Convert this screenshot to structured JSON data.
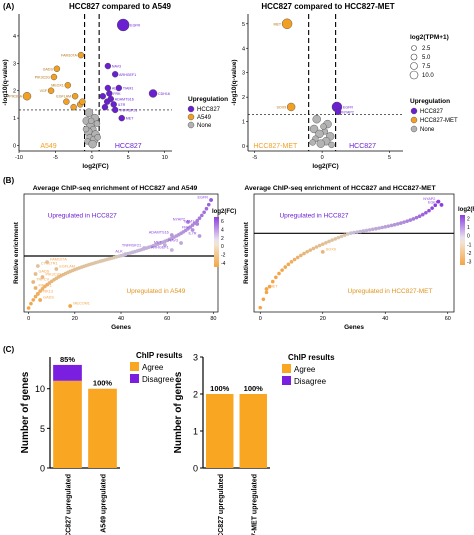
{
  "panels": {
    "a": {
      "label": "(A)",
      "left_title": "HCC827 compared to A549",
      "right_title": "HCC827 compared to HCC827-MET"
    },
    "b": {
      "label": "(B)",
      "left_title": "Average ChIP-seq enrichment of HCC827 and A549",
      "right_title": "Average ChIP-seq enrichment of HCC827 and HCC827-MET"
    },
    "c": {
      "label": "(C)"
    }
  },
  "legends": {
    "size_title": "log2(TPM+1)",
    "size_values": [
      "2.5",
      "5.0",
      "7.5",
      "10.0"
    ],
    "upreg_title": "Upregulation",
    "upreg_left": [
      "HCC827",
      "A549",
      "None"
    ],
    "upreg_right": [
      "HCC827",
      "HCC827-MET",
      "None"
    ],
    "fc_title": "log2(FC)",
    "chip_title": "ChIP results",
    "chip_items": [
      "Agree",
      "Disagree"
    ]
  },
  "colors": {
    "hcc827": "#6a1fd0",
    "a549": "#f2a024",
    "none": "#b3b3b3",
    "bar_orange": "#f9a623",
    "bar_purple": "#7a1fe0",
    "fc_high": "#8b3fe0",
    "fc_low": "#f5a445"
  },
  "chart_data": [
    {
      "type": "scatter",
      "id": "volcano-left",
      "title": "HCC827 compared to A549",
      "xlabel": "log2(FC)",
      "ylabel": "-log10(q-value)",
      "xlim": [
        -10,
        11
      ],
      "ylim": [
        -0.2,
        4.8
      ],
      "xticks": [
        -10,
        -5,
        0,
        5,
        10
      ],
      "yticks": [
        0,
        1,
        2,
        3,
        4
      ],
      "threshold_y": 1.3,
      "threshold_x": [
        -1,
        1
      ],
      "region_labels": {
        "left": "A549",
        "right": "HCC827"
      },
      "points": [
        {
          "x": 4.3,
          "y": 4.4,
          "r": 6,
          "g": "hcc827",
          "label": "EGFR"
        },
        {
          "x": 8.4,
          "y": 1.9,
          "r": 4,
          "g": "hcc827",
          "label": "CDH16"
        },
        {
          "x": 2.2,
          "y": 2.9,
          "r": 3,
          "g": "hcc827",
          "label": "NAV3"
        },
        {
          "x": 3.2,
          "y": 2.6,
          "r": 3,
          "g": "hcc827",
          "label": "ARHGEF1"
        },
        {
          "x": 3.7,
          "y": 2.1,
          "r": 3,
          "g": "hcc827",
          "label": "TIAM1"
        },
        {
          "x": 2.2,
          "y": 2.1,
          "r": 3,
          "g": "hcc827",
          "label": "ALK"
        },
        {
          "x": 2.4,
          "y": 1.9,
          "r": 3,
          "g": "hcc827",
          "label": "FRK"
        },
        {
          "x": 2.6,
          "y": 1.7,
          "r": 3,
          "g": "hcc827",
          "label": "ADAMTS16"
        },
        {
          "x": 3.0,
          "y": 1.5,
          "r": 3,
          "g": "hcc827",
          "label": "ILTR"
        },
        {
          "x": 1.8,
          "y": 1.4,
          "r": 3,
          "g": "hcc827",
          "label": ""
        },
        {
          "x": 3.2,
          "y": 1.3,
          "r": 3,
          "g": "hcc827",
          "label": "TNFRSF21"
        },
        {
          "x": 2.1,
          "y": 1.6,
          "r": 3,
          "g": "hcc827",
          "label": ""
        },
        {
          "x": 4.1,
          "y": 1.0,
          "r": 3,
          "g": "hcc827",
          "label": "MET"
        },
        {
          "x": 1.5,
          "y": 1.8,
          "r": 3,
          "g": "hcc827",
          "label": ""
        },
        {
          "x": -1.5,
          "y": 3.3,
          "r": 3,
          "g": "a549",
          "label": "FAM107A"
        },
        {
          "x": -4.8,
          "y": 2.8,
          "r": 3,
          "g": "a549",
          "label": "GADS"
        },
        {
          "x": -5.2,
          "y": 2.5,
          "r": 3,
          "g": "a549",
          "label": "PIK3C2G"
        },
        {
          "x": -3.3,
          "y": 2.2,
          "r": 3,
          "g": "a549",
          "label": "MEOX1"
        },
        {
          "x": -5.6,
          "y": 2.0,
          "r": 3,
          "g": "a549",
          "label": "VGF"
        },
        {
          "x": -8.9,
          "y": 1.8,
          "r": 4,
          "g": "a549",
          "label": "PIK3CA"
        },
        {
          "x": -2.3,
          "y": 1.8,
          "r": 3,
          "g": "a549",
          "label": "EGFLAM"
        },
        {
          "x": -1.6,
          "y": 1.5,
          "r": 3,
          "g": "a549",
          "label": ""
        },
        {
          "x": -2.5,
          "y": 1.4,
          "r": 3,
          "g": "a549",
          "label": ""
        },
        {
          "x": -1.3,
          "y": 1.6,
          "r": 3,
          "g": "a549",
          "label": ""
        },
        {
          "x": -3.5,
          "y": 1.6,
          "r": 3,
          "g": "a549",
          "label": ""
        },
        {
          "x": -0.4,
          "y": 1.2,
          "r": 4,
          "g": "none",
          "label": ""
        },
        {
          "x": 0.4,
          "y": 1.0,
          "r": 4,
          "g": "none",
          "label": ""
        },
        {
          "x": -0.7,
          "y": 0.9,
          "r": 4,
          "g": "none",
          "label": ""
        },
        {
          "x": 0.7,
          "y": 0.8,
          "r": 3,
          "g": "none",
          "label": ""
        },
        {
          "x": -0.2,
          "y": 0.7,
          "r": 4,
          "g": "none",
          "label": ""
        },
        {
          "x": 0.2,
          "y": 0.6,
          "r": 3,
          "g": "none",
          "label": ""
        },
        {
          "x": -0.5,
          "y": 0.5,
          "r": 4,
          "g": "none",
          "label": ""
        },
        {
          "x": 0.5,
          "y": 0.4,
          "r": 4,
          "g": "none",
          "label": ""
        },
        {
          "x": -0.3,
          "y": 0.3,
          "r": 3,
          "g": "none",
          "label": ""
        },
        {
          "x": 0.3,
          "y": 0.2,
          "r": 4,
          "g": "none",
          "label": ""
        },
        {
          "x": -0.6,
          "y": 0.15,
          "r": 3,
          "g": "none",
          "label": ""
        },
        {
          "x": 0.1,
          "y": 0.05,
          "r": 4,
          "g": "none",
          "label": ""
        },
        {
          "x": -0.1,
          "y": 0.9,
          "r": 3,
          "g": "none",
          "label": ""
        },
        {
          "x": 0.8,
          "y": 0.3,
          "r": 3,
          "g": "none",
          "label": ""
        },
        {
          "x": -0.8,
          "y": 0.6,
          "r": 3,
          "g": "none",
          "label": ""
        }
      ]
    },
    {
      "type": "scatter",
      "id": "volcano-right",
      "title": "HCC827 compared to HCC827-MET",
      "xlabel": "log2(FC)",
      "ylabel": "-log10(q-value)",
      "xlim": [
        -5.5,
        6
      ],
      "ylim": [
        -0.2,
        5.4
      ],
      "xticks": [
        -5,
        0,
        5
      ],
      "yticks": [
        0,
        1,
        2,
        3,
        4,
        5
      ],
      "threshold_y": 1.3,
      "threshold_x": [
        -1,
        1
      ],
      "region_labels": {
        "left": "HCC827-MET",
        "right": "HCC827"
      },
      "points": [
        {
          "x": -2.6,
          "y": 5.0,
          "r": 5,
          "g": "a549",
          "label": "MET"
        },
        {
          "x": -2.3,
          "y": 1.6,
          "r": 4,
          "g": "a549",
          "label": "SOX9"
        },
        {
          "x": 1.1,
          "y": 1.6,
          "r": 5,
          "g": "hcc827",
          "label": "EGFR"
        },
        {
          "x": 1.2,
          "y": 1.4,
          "r": 3,
          "g": "hcc827",
          "label": "NYAP2"
        },
        {
          "x": -0.4,
          "y": 1.1,
          "r": 4,
          "g": "none",
          "label": ""
        },
        {
          "x": 0.4,
          "y": 0.9,
          "r": 4,
          "g": "none",
          "label": ""
        },
        {
          "x": -0.6,
          "y": 0.7,
          "r": 4,
          "g": "none",
          "label": ""
        },
        {
          "x": 0.2,
          "y": 0.6,
          "r": 3,
          "g": "none",
          "label": ""
        },
        {
          "x": -0.2,
          "y": 0.5,
          "r": 4,
          "g": "none",
          "label": ""
        },
        {
          "x": 0.6,
          "y": 0.4,
          "r": 4,
          "g": "none",
          "label": ""
        },
        {
          "x": -0.5,
          "y": 0.3,
          "r": 3,
          "g": "none",
          "label": ""
        },
        {
          "x": 0.3,
          "y": 0.2,
          "r": 4,
          "g": "none",
          "label": ""
        },
        {
          "x": -0.1,
          "y": 0.1,
          "r": 4,
          "g": "none",
          "label": ""
        },
        {
          "x": 0.7,
          "y": 0.05,
          "r": 3,
          "g": "none",
          "label": ""
        },
        {
          "x": -0.7,
          "y": 0.15,
          "r": 3,
          "g": "none",
          "label": ""
        },
        {
          "x": 0.1,
          "y": 0.8,
          "r": 3,
          "g": "none",
          "label": ""
        }
      ]
    },
    {
      "type": "scatter",
      "id": "enrichment-left",
      "title": "Average ChIP-seq enrichment of HCC827 and A549",
      "xlabel": "Genes",
      "ylabel": "Relative enrichment",
      "xlim": [
        -2,
        82
      ],
      "ylim": [
        -5.6,
        6.2
      ],
      "xticks": [
        0,
        20,
        40,
        60,
        80
      ],
      "yticks": [],
      "colorbar": {
        "title": "log2(FC)",
        "ticks": [
          6,
          4,
          2,
          0,
          -2,
          -4
        ],
        "range": [
          -5,
          7
        ]
      },
      "annotations": {
        "top": "Upregulated in HCC827",
        "bottom": "Upregulated in A549"
      },
      "curve_n": 80,
      "curve_min": -5.2,
      "curve_max": 5.6,
      "labeled_points": [
        {
          "x": 79,
          "y": 5.6,
          "label": "EGFR"
        },
        {
          "x": 69,
          "y": 3.4,
          "label": "NYAP2"
        },
        {
          "x": 73,
          "y": 3.2,
          "label": "TIAM1"
        },
        {
          "x": 71,
          "y": 2.6,
          "label": "FRK"
        },
        {
          "x": 74,
          "y": 2.0,
          "label": "IL7R"
        },
        {
          "x": 62,
          "y": 2.1,
          "label": "ADAMTS16"
        },
        {
          "x": 66,
          "y": 1.3,
          "label": "NAV3"
        },
        {
          "x": 59,
          "y": 1.1,
          "label": "MET"
        },
        {
          "x": 50,
          "y": 0.8,
          "label": "TNFRSF21"
        },
        {
          "x": 62,
          "y": 0.6,
          "label": "ARHGEF1"
        },
        {
          "x": 42,
          "y": 0.2,
          "label": "ALK"
        },
        {
          "x": 8,
          "y": -0.6,
          "label": "FAM107A"
        },
        {
          "x": 4,
          "y": -1.0,
          "label": "CYSLTR1"
        },
        {
          "x": 12,
          "y": -1.3,
          "label": "EGFLAM"
        },
        {
          "x": 3,
          "y": -1.8,
          "label": "GADS"
        },
        {
          "x": 6,
          "y": -2.1,
          "label": "PIK3C2G"
        },
        {
          "x": 2,
          "y": -2.6,
          "label": "TRPCV"
        },
        {
          "x": 3,
          "y": -3.2,
          "label": "MEOX1"
        },
        {
          "x": 4,
          "y": -3.8,
          "label": "PRK13"
        },
        {
          "x": 5,
          "y": -4.4,
          "label": "GADS"
        },
        {
          "x": 18,
          "y": -5.0,
          "label": "MECOM1"
        }
      ]
    },
    {
      "type": "scatter",
      "id": "enrichment-right",
      "title": "Average ChIP-seq enrichment of HCC827 and HCC827-MET",
      "xlabel": "Genes",
      "ylabel": "Relative enrichment",
      "xlim": [
        -2,
        62
      ],
      "ylim": [
        -7.2,
        3.6
      ],
      "xticks": [
        0,
        20,
        40,
        60
      ],
      "yticks": [],
      "colorbar": {
        "title": "log2(FC)",
        "ticks": [
          2,
          1,
          0,
          -1,
          -2,
          -3
        ],
        "range": [
          -3.4,
          2.4
        ]
      },
      "annotations": {
        "top": "Upregulated in HCC827",
        "bottom": "Upregulated in HCC827-MET"
      },
      "curve_n": 58,
      "curve_min": -6.8,
      "curve_max": 2.9,
      "labeled_points": [
        {
          "x": 57,
          "y": 2.9,
          "label": "NYAP2"
        },
        {
          "x": 58,
          "y": 2.6,
          "label": "EGFR"
        },
        {
          "x": 20,
          "y": -1.7,
          "label": "SOX9"
        },
        {
          "x": 2,
          "y": -5.1,
          "label": "MET"
        }
      ]
    },
    {
      "type": "bar",
      "id": "chip-left",
      "ylabel": "Number of genes",
      "ylim": [
        0,
        14
      ],
      "yticks": [
        0,
        5,
        10
      ],
      "categories": [
        "HCC827 upregulated",
        "A549 upregulated"
      ],
      "series": [
        {
          "name": "Agree",
          "values": [
            11,
            10
          ]
        },
        {
          "name": "Disagree",
          "values": [
            2,
            0
          ]
        }
      ],
      "data_labels": [
        "85%",
        "100%"
      ]
    },
    {
      "type": "bar",
      "id": "chip-right",
      "ylabel": "Number of genes",
      "ylim": [
        0,
        3
      ],
      "yticks": [
        0,
        1,
        2,
        3
      ],
      "categories": [
        "HCC827 upregulated",
        "HCC827-MET upregulated"
      ],
      "series": [
        {
          "name": "Agree",
          "values": [
            2,
            2
          ]
        },
        {
          "name": "Disagree",
          "values": [
            0,
            0
          ]
        }
      ],
      "data_labels": [
        "100%",
        "100%"
      ]
    }
  ]
}
